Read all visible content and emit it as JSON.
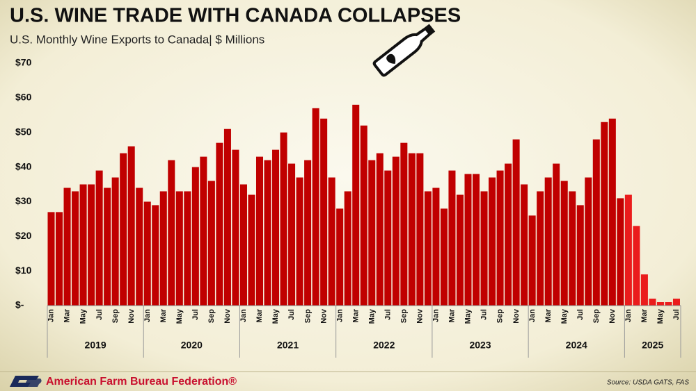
{
  "chart_data": {
    "type": "bar",
    "title": "U.S. WINE TRADE WITH CANADA COLLAPSES",
    "subtitle": "U.S. Monthly Wine Exports to Canada| $ Millions",
    "source": "Source: USDA GATS, FAS",
    "organization": "American Farm Bureau Federation®",
    "categories": [
      "Jan",
      null,
      "Mar",
      null,
      "May",
      null,
      "Jul",
      null,
      "Sep",
      null,
      "Nov",
      null,
      "Jan",
      null,
      "Mar",
      null,
      "May",
      null,
      "Jul",
      null,
      "Sep",
      null,
      "Nov",
      null,
      "Jan",
      null,
      "Mar",
      null,
      "May",
      null,
      "Jul",
      null,
      "Sep",
      null,
      "Nov",
      null,
      "Jan",
      null,
      "Mar",
      null,
      "May",
      null,
      "Jul",
      null,
      "Sep",
      null,
      "Nov",
      null,
      "Jan",
      null,
      "Mar",
      null,
      "May",
      null,
      "Jul",
      null,
      "Sep",
      null,
      "Nov",
      null,
      "Jan",
      null,
      "Mar",
      null,
      "May",
      null,
      "Jul",
      null,
      "Sep",
      null,
      "Nov",
      null,
      "Jan",
      null,
      "Mar",
      null,
      "May",
      null,
      "Jul"
    ],
    "values": [
      27,
      27,
      34,
      33,
      35,
      35,
      39,
      34,
      37,
      44,
      46,
      34,
      30,
      29,
      33,
      42,
      33,
      33,
      40,
      43,
      36,
      47,
      51,
      45,
      35,
      32,
      43,
      42,
      45,
      50,
      41,
      37,
      42,
      57,
      54,
      37,
      28,
      33,
      58,
      52,
      42,
      44,
      39,
      43,
      47,
      44,
      44,
      33,
      34,
      28,
      39,
      32,
      38,
      38,
      33,
      37,
      39,
      41,
      48,
      35,
      26,
      33,
      37,
      41,
      36,
      33,
      29,
      37,
      48,
      53,
      54,
      31,
      32,
      23,
      9,
      2,
      1,
      1,
      2
    ],
    "groups": [
      {
        "label": "2019",
        "months": 12,
        "color": "#c00000"
      },
      {
        "label": "2020",
        "months": 12,
        "color": "#c00000"
      },
      {
        "label": "2021",
        "months": 12,
        "color": "#c00000"
      },
      {
        "label": "2022",
        "months": 12,
        "color": "#c00000"
      },
      {
        "label": "2023",
        "months": 12,
        "color": "#c00000"
      },
      {
        "label": "2024",
        "months": 12,
        "color": "#c00000"
      },
      {
        "label": "2025",
        "months": 7,
        "color": "#ea1c1c"
      }
    ],
    "ylim": [
      0,
      70
    ],
    "yticks": [
      {
        "value": 0,
        "label": "$-"
      },
      {
        "value": 10,
        "label": "$10"
      },
      {
        "value": 20,
        "label": "$20"
      },
      {
        "value": 30,
        "label": "$30"
      },
      {
        "value": 40,
        "label": "$40"
      },
      {
        "value": 50,
        "label": "$50"
      },
      {
        "value": 60,
        "label": "$60"
      },
      {
        "value": 70,
        "label": "$70"
      }
    ],
    "grid": false
  }
}
